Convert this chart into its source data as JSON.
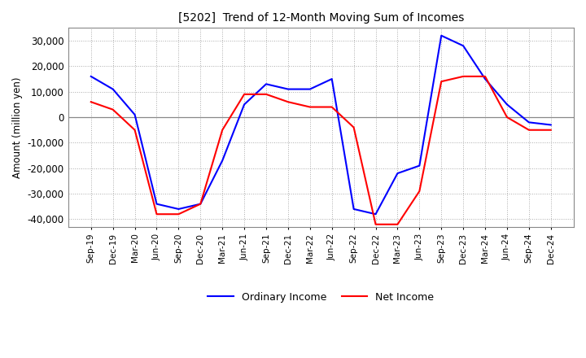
{
  "title": "[5202]  Trend of 12-Month Moving Sum of Incomes",
  "ylabel": "Amount (million yen)",
  "ylim": [
    -43000,
    35000
  ],
  "yticks": [
    -40000,
    -30000,
    -20000,
    -10000,
    0,
    10000,
    20000,
    30000
  ],
  "x_labels": [
    "Sep-19",
    "Dec-19",
    "Mar-20",
    "Jun-20",
    "Sep-20",
    "Dec-20",
    "Mar-21",
    "Jun-21",
    "Sep-21",
    "Dec-21",
    "Mar-22",
    "Jun-22",
    "Sep-22",
    "Dec-22",
    "Mar-23",
    "Jun-23",
    "Sep-23",
    "Dec-23",
    "Mar-24",
    "Jun-24",
    "Sep-24",
    "Dec-24"
  ],
  "ordinary_income": [
    16000,
    11000,
    1000,
    -34000,
    -36000,
    -34000,
    -17000,
    5000,
    13000,
    11000,
    11000,
    15000,
    -36000,
    -38000,
    -22000,
    -19000,
    32000,
    28000,
    15000,
    5000,
    -2000,
    -3000
  ],
  "net_income": [
    6000,
    3000,
    -5000,
    -38000,
    -38000,
    -34000,
    -5000,
    9000,
    9000,
    6000,
    4000,
    4000,
    -4000,
    -42000,
    -42000,
    -29000,
    14000,
    16000,
    16000,
    0,
    -5000,
    -5000
  ],
  "ordinary_color": "#0000FF",
  "net_color": "#FF0000",
  "line_width": 1.5,
  "background_color": "#FFFFFF",
  "grid_color": "#AAAAAA",
  "legend_ordinary": "Ordinary Income",
  "legend_net": "Net Income"
}
